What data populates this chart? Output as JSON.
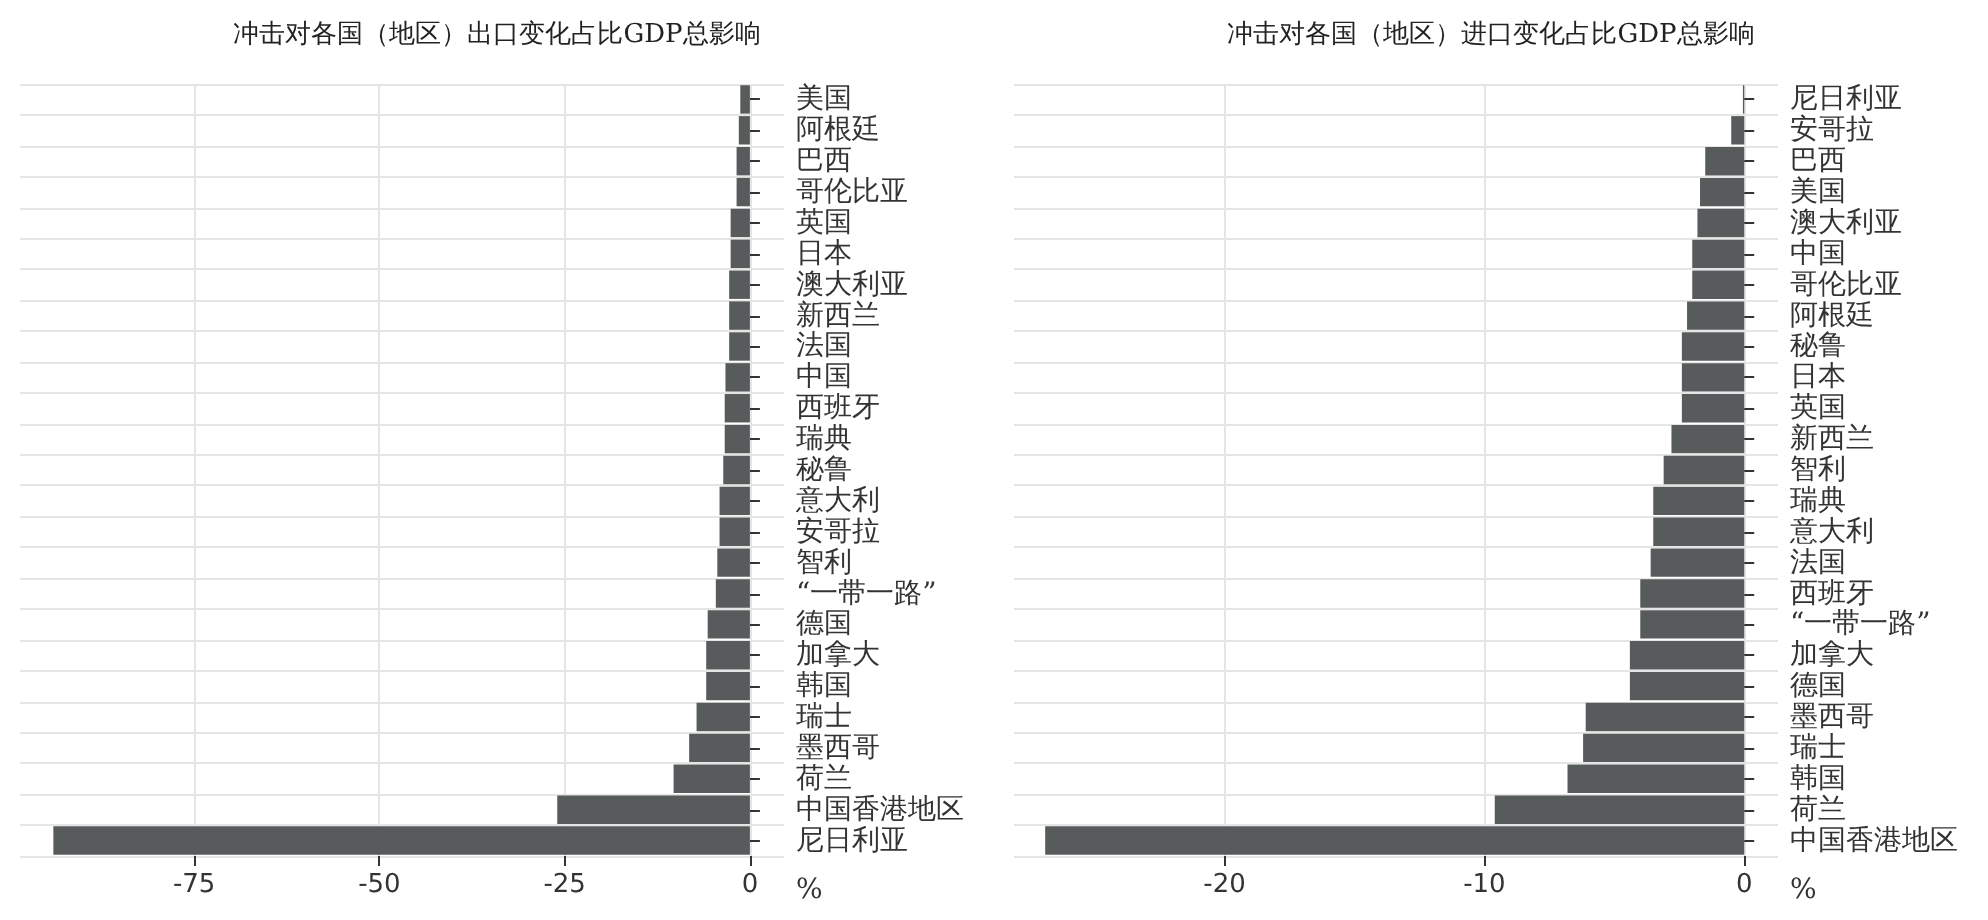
{
  "chart_data": [
    {
      "type": "bar",
      "orientation": "horizontal",
      "title": "冲击对各国（地区）出口变化占比GDP总影响",
      "xlabel": "%",
      "color": "#585b5c",
      "grid": true,
      "categories": [
        "美国",
        "阿根廷",
        "巴西",
        "哥伦比亚",
        "英国",
        "日本",
        "澳大利亚",
        "新西兰",
        "法国",
        "中国",
        "西班牙",
        "瑞典",
        "秘鲁",
        "意大利",
        "安哥拉",
        "智利",
        "“一带一路”",
        "德国",
        "加拿大",
        "韩国",
        "瑞士",
        "墨西哥",
        "荷兰",
        "中国香港地区",
        "尼日利亚"
      ],
      "values": [
        -1.3,
        -1.5,
        -1.8,
        -1.8,
        -2.6,
        -2.6,
        -2.8,
        -2.8,
        -2.8,
        -3.3,
        -3.4,
        -3.4,
        -3.6,
        -4.1,
        -4.1,
        -4.4,
        -4.6,
        -5.7,
        -5.9,
        -5.9,
        -7.2,
        -8.2,
        -10.3,
        -26,
        -94
      ],
      "xlim": [
        -98.5,
        4.6
      ],
      "xticks": [
        -75,
        -50,
        -25,
        0
      ]
    },
    {
      "type": "bar",
      "orientation": "horizontal",
      "title": "冲击对各国（地区）进口变化占比GDP总影响",
      "xlabel": "%",
      "color": "#585b5c",
      "grid": true,
      "categories": [
        "尼日利亚",
        "安哥拉",
        "巴西",
        "美国",
        "澳大利亚",
        "中国",
        "哥伦比亚",
        "阿根廷",
        "秘鲁",
        "日本",
        "英国",
        "新西兰",
        "智利",
        "瑞典",
        "意大利",
        "法国",
        "西班牙",
        "“一带一路”",
        "加拿大",
        "德国",
        "墨西哥",
        "瑞士",
        "韩国",
        "荷兰",
        "中国香港地区"
      ],
      "values": [
        -0.05,
        -0.5,
        -1.5,
        -1.7,
        -1.8,
        -2.0,
        -2.0,
        -2.2,
        -2.4,
        -2.4,
        -2.4,
        -2.8,
        -3.1,
        -3.5,
        -3.5,
        -3.6,
        -4.0,
        -4.0,
        -4.4,
        -4.4,
        -6.1,
        -6.2,
        -6.8,
        -9.6,
        -26.9
      ],
      "xlim": [
        -28.1,
        1.3
      ],
      "xticks": [
        -20,
        -10,
        0
      ]
    }
  ]
}
